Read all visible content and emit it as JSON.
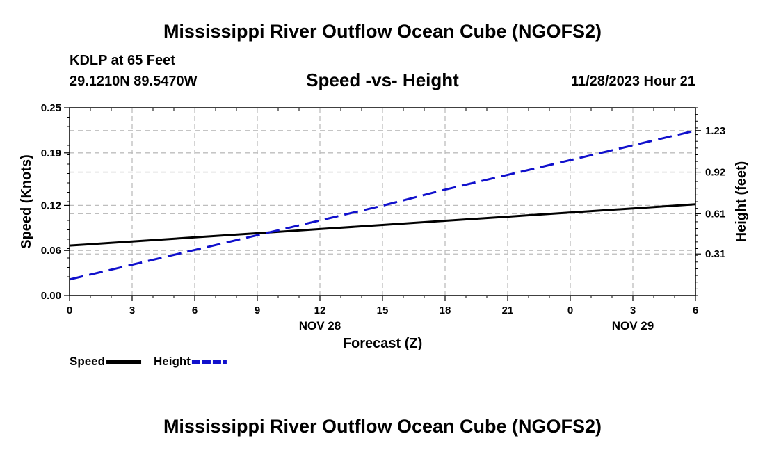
{
  "header": {
    "title": "Mississippi River Outflow Ocean Cube (NGOFS2)",
    "station": "KDLP at 65 Feet",
    "coords": "29.1210N  89.5470W",
    "subtitle": "Speed -vs- Height",
    "timestamp": "11/28/2023 Hour 21"
  },
  "footer": {
    "title": "Mississippi River Outflow Ocean Cube (NGOFS2)"
  },
  "chart_data": {
    "type": "line",
    "title": "Speed -vs- Height",
    "xlabel": "Forecast (Z)",
    "ylabel": "Speed (Knots)",
    "y2label": "Height (feet)",
    "x": [
      0,
      3,
      6,
      9,
      12,
      15,
      18,
      21,
      24,
      27,
      30
    ],
    "xticklabels": [
      "0",
      "3",
      "6",
      "9",
      "12",
      "15",
      "18",
      "21",
      "0",
      "3",
      "6"
    ],
    "date_labels": [
      {
        "x": 12,
        "label": "NOV 28"
      },
      {
        "x": 27,
        "label": "NOV 29"
      }
    ],
    "xlim": [
      0,
      30
    ],
    "ylim": [
      0,
      0.25
    ],
    "yticks": [
      0.0,
      0.06,
      0.12,
      0.19,
      0.25
    ],
    "yticklabels": [
      "0.00",
      "0.06",
      "0.12",
      "0.19",
      "0.25"
    ],
    "y2lim": [
      0,
      1.4
    ],
    "y2ticks": [
      0.31,
      0.61,
      0.92,
      1.23
    ],
    "y2ticklabels": [
      "0.31",
      "0.61",
      "0.92",
      "1.23"
    ],
    "grid": true,
    "series": [
      {
        "name": "Speed",
        "axis": "left",
        "color": "#000000",
        "style": "solid",
        "values": [
          0.0665,
          0.072,
          0.0775,
          0.083,
          0.0885,
          0.094,
          0.0995,
          0.105,
          0.1105,
          0.116,
          0.1215
        ]
      },
      {
        "name": "Height",
        "axis": "right",
        "color": "#1010cc",
        "style": "dashed",
        "values": [
          0.12,
          0.23,
          0.34,
          0.45,
          0.56,
          0.67,
          0.79,
          0.9,
          1.01,
          1.12,
          1.23
        ]
      }
    ],
    "legend": [
      {
        "label": "Speed",
        "color": "#000000",
        "style": "solid"
      },
      {
        "label": "Height",
        "color": "#1010cc",
        "style": "dashed"
      }
    ],
    "legend_position": "bottom-left"
  }
}
